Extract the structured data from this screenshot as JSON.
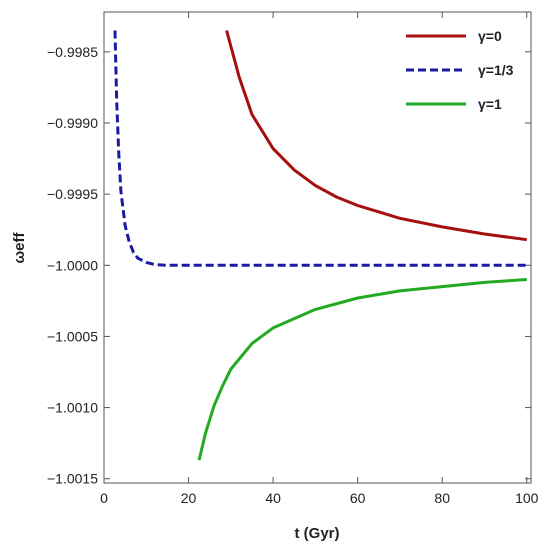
{
  "chart_data": {
    "type": "line",
    "xlabel": "t (Gyr)",
    "ylabel": "ωeff",
    "xlim": [
      0,
      101
    ],
    "ylim": [
      -1.00153,
      -0.99822
    ],
    "xticks": [
      0,
      20,
      40,
      60,
      80,
      100
    ],
    "yticks": [
      -0.9985,
      -0.999,
      -0.9995,
      -1.0,
      -1.0005,
      -1.001,
      -1.0015
    ],
    "ytick_labels": [
      "-0.9985",
      "-0.9990",
      "-0.9995",
      "-1.0000",
      "-1.0005",
      "-1.0010",
      "-1.0015"
    ],
    "legend_position": "top-right",
    "grid": false,
    "series": [
      {
        "name": "γ=0",
        "color": "#a50f0f",
        "dash": "solid",
        "x": [
          29,
          32,
          35,
          40,
          45,
          50,
          55,
          60,
          70,
          80,
          90,
          100
        ],
        "y": [
          -0.99835,
          -0.99868,
          -0.99894,
          -0.99918,
          -0.99933,
          -0.99944,
          -0.99952,
          -0.99958,
          -0.99967,
          -0.99973,
          -0.99978,
          -0.99982
        ]
      },
      {
        "name": "γ=1/3",
        "color": "#1a1aa6",
        "dash": "dashed",
        "x": [
          2.6,
          3,
          3.5,
          4,
          5,
          6,
          7,
          8,
          10,
          12,
          15,
          20,
          30,
          40,
          60,
          80,
          100
        ],
        "y": [
          -0.99835,
          -0.99885,
          -0.99922,
          -0.99948,
          -0.99972,
          -0.99984,
          -0.99991,
          -0.99995,
          -0.99998,
          -0.999995,
          -1.0,
          -1.0,
          -1.0,
          -1.0,
          -1.0,
          -1.0,
          -1.0
        ]
      },
      {
        "name": "γ=1",
        "color": "#22aa22",
        "dash": "solid",
        "x": [
          22.5,
          24,
          26,
          28,
          30,
          35,
          40,
          50,
          60,
          70,
          80,
          90,
          100
        ],
        "y": [
          -1.00137,
          -1.00118,
          -1.00099,
          -1.00085,
          -1.00073,
          -1.00055,
          -1.00044,
          -1.00031,
          -1.00023,
          -1.00018,
          -1.00015,
          -1.00012,
          -1.0001
        ]
      }
    ]
  }
}
